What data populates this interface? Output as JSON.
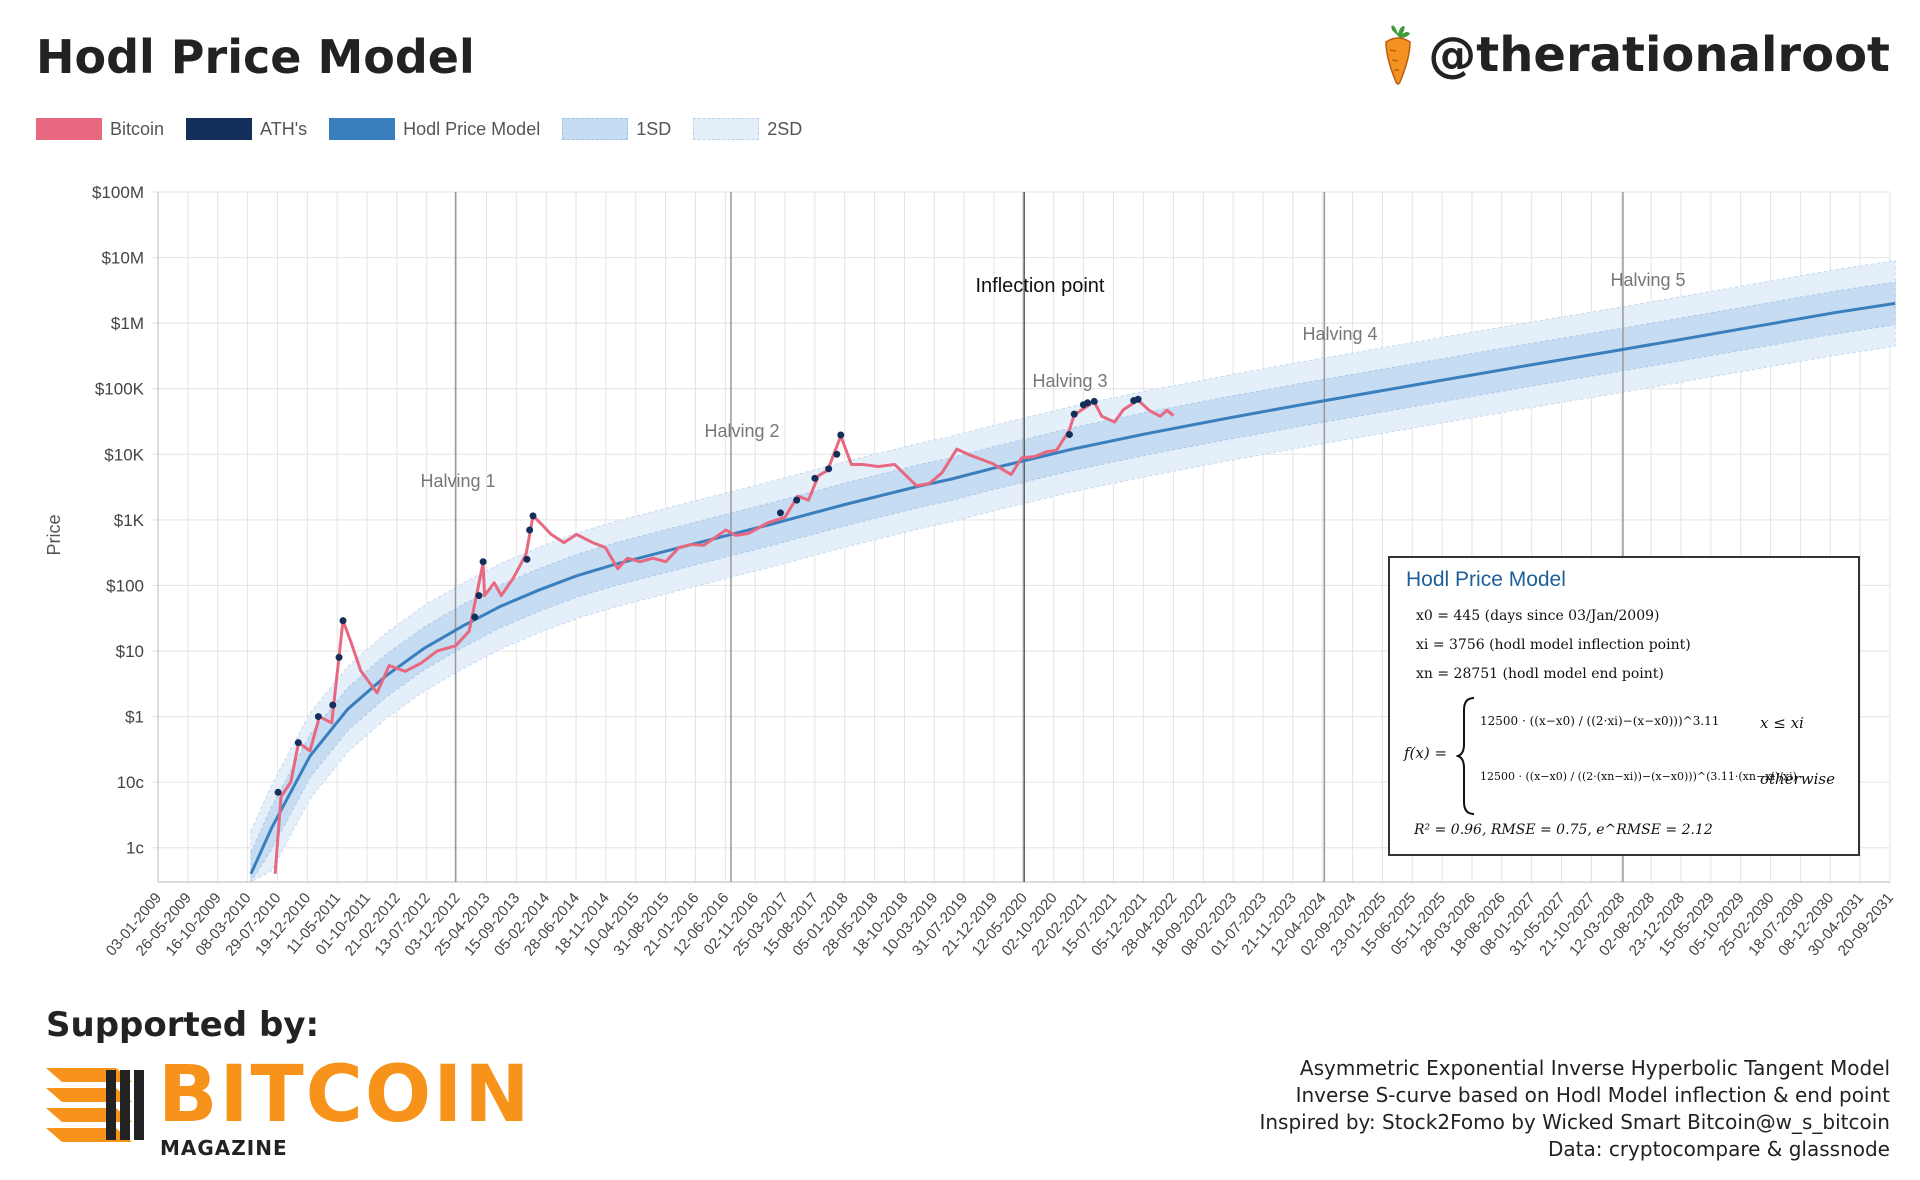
{
  "header": {
    "title": "Hodl Price Model",
    "handle": "@therationalroot"
  },
  "legend": [
    {
      "label": "Bitcoin",
      "color": "#e8687f"
    },
    {
      "label": "ATH's",
      "color": "#14305a"
    },
    {
      "label": "Hodl Price Model",
      "color": "#3a7fbd"
    },
    {
      "label": "1SD",
      "color": "#c6dcf3"
    },
    {
      "label": "2SD",
      "color": "#e4effa"
    }
  ],
  "chart_data": {
    "type": "line",
    "ylabel": "Price",
    "y_scale": "log",
    "ylim": [
      0.003,
      100000000
    ],
    "y_ticks": [
      {
        "value": 0.01,
        "label": "1c"
      },
      {
        "value": 0.1,
        "label": "10c"
      },
      {
        "value": 1,
        "label": "$1"
      },
      {
        "value": 10,
        "label": "$10"
      },
      {
        "value": 100,
        "label": "$100"
      },
      {
        "value": 1000,
        "label": "$1K"
      },
      {
        "value": 10000,
        "label": "$10K"
      },
      {
        "value": 100000,
        "label": "$100K"
      },
      {
        "value": 1000000,
        "label": "$1M"
      },
      {
        "value": 10000000,
        "label": "$10M"
      },
      {
        "value": 100000000,
        "label": "$100M"
      }
    ],
    "x_ticks": [
      "03-01-2009",
      "26-05-2009",
      "16-10-2009",
      "08-03-2010",
      "29-07-2010",
      "19-12-2010",
      "11-05-2011",
      "01-10-2011",
      "21-02-2012",
      "13-07-2012",
      "03-12-2012",
      "25-04-2013",
      "15-09-2013",
      "05-02-2014",
      "28-06-2014",
      "18-11-2014",
      "10-04-2015",
      "31-08-2015",
      "21-01-2016",
      "12-06-2016",
      "02-11-2016",
      "25-03-2017",
      "15-08-2017",
      "05-01-2018",
      "28-05-2018",
      "18-10-2018",
      "10-03-2019",
      "31-07-2019",
      "21-12-2019",
      "12-05-2020",
      "02-10-2020",
      "22-02-2021",
      "15-07-2021",
      "05-12-2021",
      "28-04-2022",
      "18-09-2022",
      "08-02-2023",
      "01-07-2023",
      "21-11-2023",
      "12-04-2024",
      "02-09-2024",
      "23-01-2025",
      "15-06-2025",
      "05-11-2025",
      "28-03-2026",
      "18-08-2026",
      "08-01-2027",
      "31-05-2027",
      "21-10-2027",
      "12-03-2028",
      "02-08-2028",
      "23-12-2028",
      "15-05-2029",
      "05-10-2029",
      "25-02-2030",
      "18-07-2030",
      "08-12-2030",
      "30-04-2031",
      "20-09-2031"
    ],
    "grid": true,
    "vertical_markers": [
      {
        "label": "Halving 1",
        "date": "2012-11-28"
      },
      {
        "label": "Halving 2",
        "date": "2016-07-09"
      },
      {
        "label": "Inflection point",
        "date": "2019-05-04",
        "label_date": "2020-05-12"
      },
      {
        "label": "Halving 3",
        "date": "2020-05-11"
      },
      {
        "label": "Halving 4",
        "date": "2024-04-20"
      },
      {
        "label": "Halving 5",
        "date": "2028-03-20"
      }
    ],
    "series": [
      {
        "name": "Bitcoin",
        "x": [
          "2010-07-18",
          "2010-08-15",
          "2010-10-01",
          "2010-11-07",
          "2011-01-01",
          "2011-02-15",
          "2011-04-15",
          "2011-06-08",
          "2011-07-15",
          "2011-09-01",
          "2011-11-18",
          "2012-01-15",
          "2012-04-01",
          "2012-06-15",
          "2012-09-01",
          "2012-11-28",
          "2013-02-01",
          "2013-04-09",
          "2013-04-16",
          "2013-06-01",
          "2013-07-05",
          "2013-09-01",
          "2013-11-01",
          "2013-12-04",
          "2014-01-15",
          "2014-03-01",
          "2014-05-01",
          "2014-07-01",
          "2014-09-15",
          "2014-11-15",
          "2015-01-14",
          "2015-03-01",
          "2015-05-01",
          "2015-07-01",
          "2015-09-01",
          "2015-11-04",
          "2016-01-01",
          "2016-03-01",
          "2016-06-15",
          "2016-08-01",
          "2016-10-01",
          "2017-01-01",
          "2017-03-25",
          "2017-05-25",
          "2017-07-15",
          "2017-09-01",
          "2017-10-15",
          "2017-12-17",
          "2018-02-06",
          "2018-04-01",
          "2018-06-15",
          "2018-09-01",
          "2018-12-15",
          "2019-02-15",
          "2019-04-15",
          "2019-06-26",
          "2019-09-01",
          "2019-12-15",
          "2020-03-12",
          "2020-05-01",
          "2020-07-01",
          "2020-09-01",
          "2020-10-15",
          "2020-12-15",
          "2021-01-08",
          "2021-02-15",
          "2021-04-14",
          "2021-05-20",
          "2021-07-20",
          "2021-09-01",
          "2021-11-10",
          "2022-01-01",
          "2022-02-24",
          "2022-03-28",
          "2022-04-28"
        ],
        "values": [
          0.004,
          0.06,
          0.1,
          0.4,
          0.3,
          1,
          0.8,
          29,
          14,
          5,
          2.3,
          6,
          4.9,
          6.5,
          10,
          12,
          20,
          220,
          70,
          110,
          70,
          130,
          300,
          1150,
          850,
          600,
          450,
          600,
          450,
          380,
          180,
          260,
          230,
          260,
          230,
          380,
          420,
          410,
          700,
          580,
          620,
          900,
          1100,
          2300,
          2000,
          4700,
          5700,
          19000,
          7000,
          7000,
          6500,
          7000,
          3300,
          3600,
          5200,
          12000,
          9600,
          7200,
          4900,
          8800,
          9200,
          11000,
          11500,
          23000,
          40000,
          48000,
          63000,
          38000,
          31000,
          48000,
          67000,
          47000,
          38000,
          47000,
          39000
        ]
      },
      {
        "name": "ATH's",
        "points": [
          {
            "x": "2010-08-01",
            "y": 0.07
          },
          {
            "x": "2010-11-06",
            "y": 0.4
          },
          {
            "x": "2011-02-10",
            "y": 1
          },
          {
            "x": "2011-04-20",
            "y": 1.5
          },
          {
            "x": "2011-05-20",
            "y": 8
          },
          {
            "x": "2011-06-08",
            "y": 29
          },
          {
            "x": "2013-02-28",
            "y": 33
          },
          {
            "x": "2013-03-20",
            "y": 70
          },
          {
            "x": "2013-04-09",
            "y": 230
          },
          {
            "x": "2013-11-05",
            "y": 250
          },
          {
            "x": "2013-11-18",
            "y": 700
          },
          {
            "x": "2013-12-04",
            "y": 1150
          },
          {
            "x": "2017-03-03",
            "y": 1280
          },
          {
            "x": "2017-05-20",
            "y": 2000
          },
          {
            "x": "2017-08-15",
            "y": 4300
          },
          {
            "x": "2017-10-20",
            "y": 6000
          },
          {
            "x": "2017-11-28",
            "y": 10000
          },
          {
            "x": "2017-12-17",
            "y": 19700
          },
          {
            "x": "2020-12-16",
            "y": 20000
          },
          {
            "x": "2021-01-08",
            "y": 41000
          },
          {
            "x": "2021-02-21",
            "y": 57000
          },
          {
            "x": "2021-03-13",
            "y": 61000
          },
          {
            "x": "2021-04-14",
            "y": 64000
          },
          {
            "x": "2021-10-20",
            "y": 66000
          },
          {
            "x": "2021-11-10",
            "y": 69000
          }
        ]
      },
      {
        "name": "Hodl Price Model",
        "x": [
          "2010-03-24",
          "2010-07-01",
          "2011-01-01",
          "2011-07-01",
          "2012-01-01",
          "2012-07-01",
          "2013-01-01",
          "2013-07-01",
          "2014-01-01",
          "2014-07-01",
          "2015-01-01",
          "2016-01-01",
          "2017-01-01",
          "2018-01-01",
          "2019-01-01",
          "2019-06-01",
          "2020-01-01",
          "2020-07-01",
          "2021-01-01",
          "2022-01-01",
          "2023-01-01",
          "2024-01-01",
          "2025-01-01",
          "2026-01-01",
          "2027-01-01",
          "2028-01-01",
          "2029-01-01",
          "2030-01-01",
          "2031-01-01",
          "2031-10-15"
        ],
        "values": [
          0.004,
          0.02,
          0.25,
          1.3,
          4.2,
          11,
          24,
          48,
          85,
          140,
          210,
          420,
          830,
          1700,
          3300,
          4200,
          6300,
          8700,
          12000,
          21000,
          35000,
          57000,
          91000,
          145000,
          230000,
          360000,
          570000,
          910000,
          1450000,
          2000000
        ]
      }
    ],
    "bands": [
      {
        "name": "1SD",
        "factor": 2.12
      },
      {
        "name": "2SD",
        "factor": 4.49
      }
    ]
  },
  "model_box": {
    "title": "Hodl Price Model",
    "x0": "x0 = 445 (days since 03/Jan/2009)",
    "xi": "xi = 3756 (hodl model inflection point)",
    "xn": "xn = 28751 (hodl model end point)",
    "f_label": "f(x) =",
    "case1": "12500 · ((x−x0) / ((2·xi)−(x−x0)))^3.11",
    "case1_cond": "x ≤ xi",
    "case2": "12500 · ((x−x0) / ((2·(xn−xi))−(x−x0)))^(3.11·(xn−xi)/xi)",
    "case2_cond": "otherwise",
    "stats": "R² = 0.96, RMSE = 0.75, e^RMSE = 2.12"
  },
  "footer": {
    "supported": "Supported by:",
    "logo_word": "BITCOIN",
    "logo_sub": "MAGAZINE",
    "notes": [
      "Asymmetric Exponential Inverse Hyperbolic Tangent Model",
      "Inverse S-curve based on Hodl Model inflection & end point",
      "Inspired by: Stock2Fomo by Wicked Smart Bitcoin@w_s_bitcoin",
      "Data: cryptocompare & glassnode"
    ]
  },
  "colors": {
    "bitcoin": "#e8687f",
    "ath": "#14305a",
    "model": "#3a7fbd",
    "sd1": "#c6dcf3",
    "sd2": "#e4effa",
    "logo_orange": "#f7931a"
  }
}
